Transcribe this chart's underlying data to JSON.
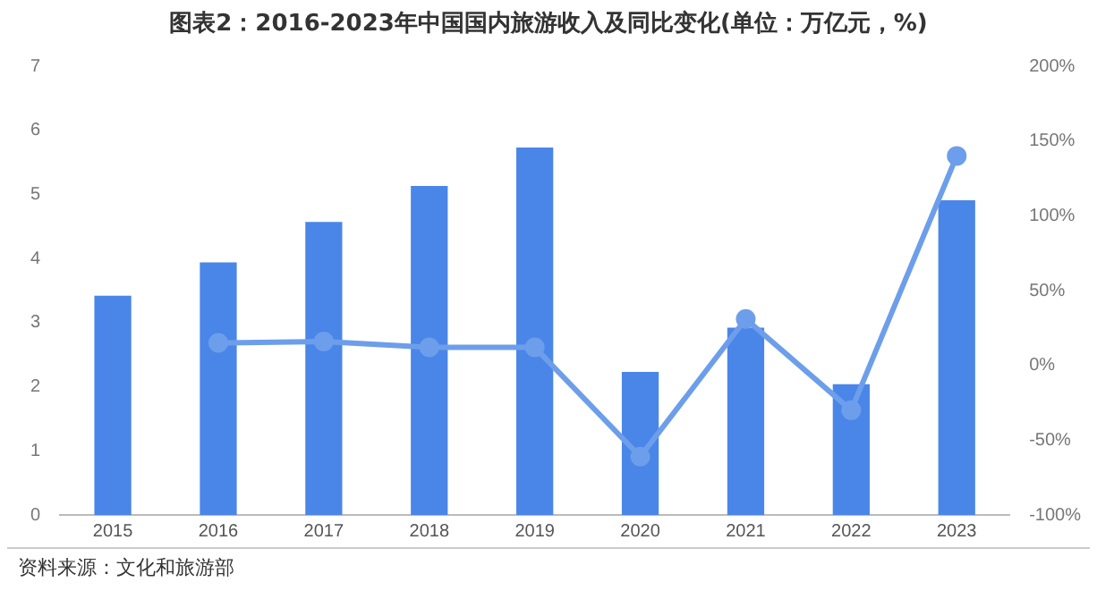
{
  "chart_data": {
    "type": "bar",
    "title": "图表2：2016-2023年中国国内旅游收入及同比变化(单位：万亿元，%)",
    "categories": [
      "2015",
      "2016",
      "2017",
      "2018",
      "2019",
      "2020",
      "2021",
      "2022",
      "2023"
    ],
    "series": [
      {
        "color": "#4a86e8",
        "values": [
          3.42,
          3.94,
          4.57,
          5.13,
          5.73,
          2.23,
          2.92,
          2.04,
          4.91
        ]
      },
      {
        "type": "line",
        "axis": "y2",
        "color": "#6d9eeb",
        "marker": "circle",
        "values": [
          null,
          15,
          16,
          12,
          12,
          -61,
          31,
          -30,
          140
        ]
      }
    ],
    "ylim": [
      0,
      7
    ],
    "yticks": [
      0,
      1,
      2,
      3,
      4,
      5,
      6,
      7
    ],
    "y2lim": [
      -100,
      200
    ],
    "y2ticks": [
      {
        "value": -100,
        "label": "-100%"
      },
      {
        "value": -50,
        "label": "-50%"
      },
      {
        "value": 0,
        "label": "0%"
      },
      {
        "value": 50,
        "label": "50%"
      },
      {
        "value": 100,
        "label": "100%"
      },
      {
        "value": 150,
        "label": "150%"
      },
      {
        "value": 200,
        "label": "200%"
      }
    ],
    "grid": false,
    "legend": false,
    "annotations": [
      "资料来源：文化和旅游部"
    ]
  }
}
